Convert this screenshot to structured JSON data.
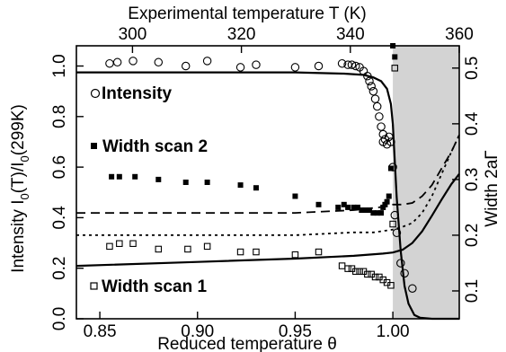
{
  "chart_data": {
    "type": "scatter",
    "xlabel_bottom": "Reduced temperature θ",
    "xlabel_top": "Experimental temperature T (K)",
    "ylabel_left": "Intensity I0(T)/I0(299K)",
    "ylabel_left_parts": [
      "Intensity I",
      "0",
      "(T)/I",
      "0",
      "(299K)"
    ],
    "ylabel_right": "Width 2aΓ",
    "ylabel_right_parts": [
      "Width 2a",
      "Γ"
    ],
    "xlim": [
      0.838,
      1.034
    ],
    "ylim_left": [
      0,
      1.08
    ],
    "ylim_right": [
      0.05,
      0.54
    ],
    "top_xlim": [
      289.7,
      360.0
    ],
    "xticks_bottom": [
      0.85,
      0.9,
      0.95,
      1.0
    ],
    "xtick_labels_bottom": [
      "0.85",
      "0.90",
      "0.95",
      "1.00"
    ],
    "xticks_top": [
      300,
      320,
      340,
      360
    ],
    "xtick_labels_top": [
      "300",
      "320",
      "340",
      "360"
    ],
    "yticks_left": [
      0,
      0.2,
      0.4,
      0.6,
      0.8,
      1.0
    ],
    "ytick_labels_left": [
      "0.0",
      "0.2",
      "0.4",
      "0.6",
      "0.8",
      "1.0"
    ],
    "yticks_right": [
      0.1,
      0.2,
      0.3,
      0.4,
      0.5
    ],
    "ytick_labels_right": [
      "0.1",
      "0.2",
      "0.3",
      "0.4",
      "0.5"
    ],
    "shaded_region": {
      "x_from": 1.0,
      "x_to": 1.034,
      "color": "#d3d3d3"
    },
    "legend": [
      {
        "label": "Intensity",
        "marker": "open-circle"
      },
      {
        "label": "Width scan 2",
        "marker": "filled-square"
      },
      {
        "label": "Width scan 1",
        "marker": "open-square"
      }
    ],
    "series": [
      {
        "name": "Intensity",
        "marker": "open-circle",
        "axis": "left",
        "x": [
          0.855,
          0.859,
          0.867,
          0.88,
          0.894,
          0.905,
          0.922,
          0.93,
          0.95,
          0.962,
          0.974,
          0.977,
          0.979,
          0.981,
          0.983,
          0.985,
          0.987,
          0.988,
          0.989,
          0.99,
          0.991,
          0.992,
          0.993,
          0.994,
          0.995,
          0.995,
          0.996,
          0.997,
          0.998,
          0.999,
          1.0,
          1.001,
          1.002,
          1.004,
          1.006,
          1.01
        ],
        "y": [
          1.01,
          1.015,
          1.02,
          1.015,
          1.0,
          1.02,
          0.995,
          1.005,
          0.995,
          1.0,
          1.01,
          1.005,
          1.005,
          1.0,
          0.995,
          0.98,
          0.96,
          0.94,
          0.92,
          0.9,
          0.87,
          0.84,
          0.8,
          0.76,
          0.73,
          0.7,
          0.71,
          0.69,
          0.72,
          0.7,
          0.6,
          0.41,
          0.34,
          0.22,
          0.18,
          0.12
        ]
      },
      {
        "name": "Width scan 2",
        "marker": "filled-square",
        "axis": "right",
        "x": [
          0.856,
          0.86,
          0.868,
          0.88,
          0.894,
          0.905,
          0.922,
          0.93,
          0.95,
          0.962,
          0.972,
          0.975,
          0.977,
          0.98,
          0.982,
          0.984,
          0.986,
          0.988,
          0.99,
          0.992,
          0.994,
          0.995,
          0.996,
          0.997,
          0.998,
          0.999,
          1.0,
          1.001
        ],
        "y": [
          0.305,
          0.305,
          0.305,
          0.3,
          0.295,
          0.295,
          0.29,
          0.285,
          0.27,
          0.255,
          0.25,
          0.255,
          0.25,
          0.25,
          0.25,
          0.245,
          0.245,
          0.245,
          0.24,
          0.24,
          0.24,
          0.25,
          0.255,
          0.26,
          0.27,
          0.32,
          0.54,
          0.52
        ]
      },
      {
        "name": "Width scan 1",
        "marker": "open-square",
        "axis": "right",
        "x": [
          0.855,
          0.86,
          0.867,
          0.88,
          0.895,
          0.905,
          0.922,
          0.93,
          0.95,
          0.962,
          0.974,
          0.977,
          0.979,
          0.981,
          0.983,
          0.985,
          0.987,
          0.989,
          0.991,
          0.993,
          0.995,
          0.997,
          0.999,
          1.0,
          1.001
        ],
        "y": [
          0.18,
          0.185,
          0.185,
          0.175,
          0.175,
          0.18,
          0.17,
          0.17,
          0.165,
          0.17,
          0.145,
          0.14,
          0.14,
          0.135,
          0.135,
          0.135,
          0.13,
          0.13,
          0.125,
          0.125,
          0.12,
          0.115,
          0.11,
          0.22,
          0.5
        ]
      },
      {
        "name": "",
        "line": "solid",
        "axis": "left",
        "x": [
          0.838,
          0.9,
          0.95,
          0.975,
          0.985,
          0.99,
          0.994,
          0.997,
          0.999,
          1.0,
          1.001,
          1.002,
          1.004,
          1.006,
          1.008,
          1.011,
          1.014,
          1.02,
          1.034
        ],
        "y": [
          0.975,
          0.975,
          0.975,
          0.97,
          0.965,
          0.955,
          0.94,
          0.91,
          0.85,
          0.77,
          0.62,
          0.48,
          0.27,
          0.13,
          0.06,
          0.015,
          0.004,
          0.0,
          0.0
        ]
      },
      {
        "name": "",
        "line": "solid",
        "axis": "right",
        "x": [
          0.838,
          0.9,
          0.95,
          0.98,
          0.995,
          1.0,
          1.005,
          1.01,
          1.015,
          1.02,
          1.025,
          1.03,
          1.034
        ],
        "y": [
          0.145,
          0.152,
          0.158,
          0.163,
          0.167,
          0.169,
          0.174,
          0.186,
          0.207,
          0.235,
          0.264,
          0.292,
          0.31
        ]
      },
      {
        "name": "",
        "line": "dashed",
        "axis": "right",
        "x": [
          0.838,
          0.9,
          0.95,
          0.98,
          0.993,
          1.0,
          1.005,
          1.01,
          1.015,
          1.02,
          1.025,
          1.03,
          1.034
        ],
        "y": [
          0.24,
          0.24,
          0.24,
          0.245,
          0.25,
          0.255,
          0.255,
          0.258,
          0.27,
          0.29,
          0.32,
          0.35,
          0.38
        ]
      },
      {
        "name": "",
        "line": "dotted",
        "axis": "right",
        "x": [
          0.838,
          0.9,
          0.95,
          0.98,
          0.99,
          1.0,
          1.005,
          1.01,
          1.015,
          1.02,
          1.025,
          1.03,
          1.034
        ],
        "y": [
          0.2,
          0.2,
          0.2,
          0.205,
          0.205,
          0.21,
          0.215,
          0.222,
          0.24,
          0.27,
          0.31,
          0.35,
          0.38
        ]
      }
    ]
  }
}
